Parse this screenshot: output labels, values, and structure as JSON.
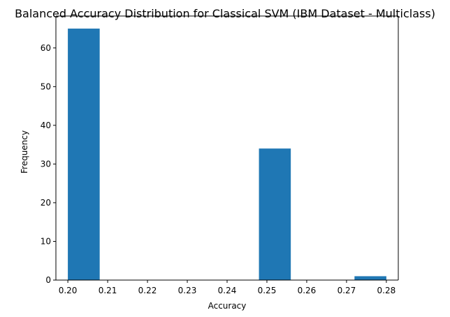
{
  "chart_data": {
    "type": "bar",
    "title": "Balanced Accuracy Distribution for Classical SVM (IBM Dataset - Multiclass)",
    "xlabel": "Accuracy",
    "ylabel": "Frequency",
    "xlim": [
      0.197,
      0.283
    ],
    "ylim": [
      0,
      68.25
    ],
    "grid": false,
    "bar_color": "#1f77b4",
    "bins": [
      {
        "start": 0.2,
        "end": 0.208,
        "value": 65
      },
      {
        "start": 0.208,
        "end": 0.216,
        "value": 0
      },
      {
        "start": 0.216,
        "end": 0.224,
        "value": 0
      },
      {
        "start": 0.224,
        "end": 0.232,
        "value": 0
      },
      {
        "start": 0.232,
        "end": 0.24,
        "value": 0
      },
      {
        "start": 0.24,
        "end": 0.248,
        "value": 0
      },
      {
        "start": 0.248,
        "end": 0.256,
        "value": 34
      },
      {
        "start": 0.256,
        "end": 0.264,
        "value": 0
      },
      {
        "start": 0.264,
        "end": 0.272,
        "value": 0
      },
      {
        "start": 0.272,
        "end": 0.28,
        "value": 1
      }
    ],
    "x_ticks": [
      0.2,
      0.21,
      0.22,
      0.23,
      0.24,
      0.25,
      0.26,
      0.27,
      0.28
    ],
    "x_tick_labels": [
      "0.20",
      "0.21",
      "0.22",
      "0.23",
      "0.24",
      "0.25",
      "0.26",
      "0.27",
      "0.28"
    ],
    "y_ticks": [
      0,
      10,
      20,
      30,
      40,
      50,
      60
    ],
    "y_tick_labels": [
      "0",
      "10",
      "20",
      "30",
      "40",
      "50",
      "60"
    ]
  }
}
